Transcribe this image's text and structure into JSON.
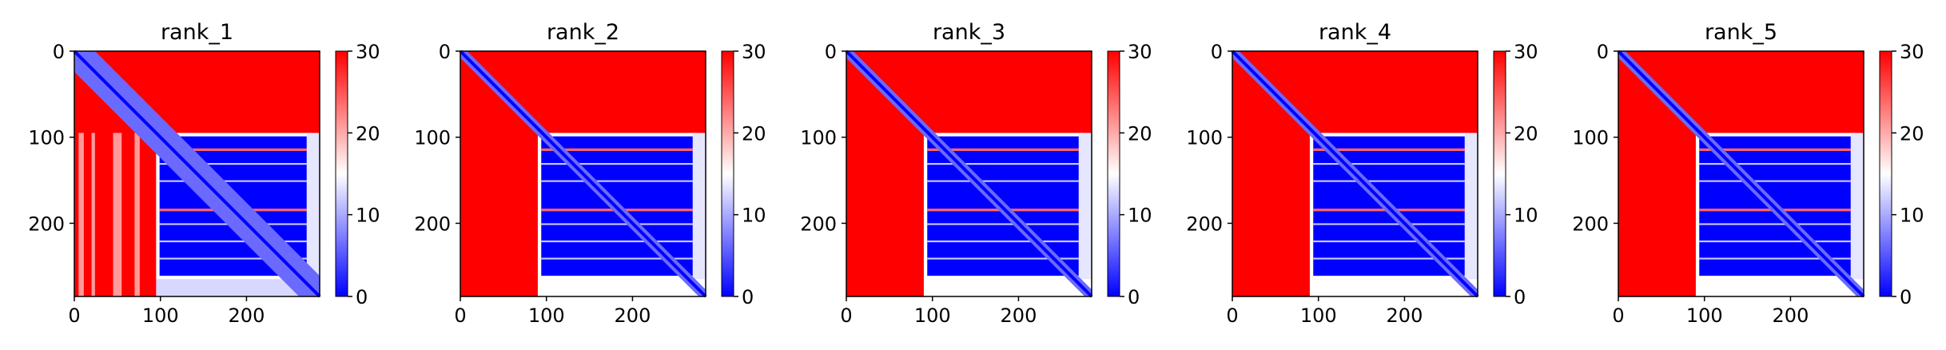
{
  "chart_data": [
    {
      "type": "heatmap",
      "title": "rank_1",
      "x_ticks": [
        0,
        100,
        200
      ],
      "y_ticks": [
        0,
        100,
        200
      ],
      "xlim": [
        0,
        285
      ],
      "ylim": [
        285,
        0
      ],
      "colorbar": {
        "ticks": [
          0,
          10,
          20,
          30
        ],
        "range": [
          0,
          30
        ],
        "colormap": "bwr"
      }
    },
    {
      "type": "heatmap",
      "title": "rank_2",
      "x_ticks": [
        0,
        100,
        200
      ],
      "y_ticks": [
        0,
        100,
        200
      ],
      "xlim": [
        0,
        285
      ],
      "ylim": [
        285,
        0
      ],
      "colorbar": {
        "ticks": [
          0,
          10,
          20,
          30
        ],
        "range": [
          0,
          30
        ],
        "colormap": "bwr"
      }
    },
    {
      "type": "heatmap",
      "title": "rank_3",
      "x_ticks": [
        0,
        100,
        200
      ],
      "y_ticks": [
        0,
        100,
        200
      ],
      "xlim": [
        0,
        285
      ],
      "ylim": [
        285,
        0
      ],
      "colorbar": {
        "ticks": [
          0,
          10,
          20,
          30
        ],
        "range": [
          0,
          30
        ],
        "colormap": "bwr"
      }
    },
    {
      "type": "heatmap",
      "title": "rank_4",
      "x_ticks": [
        0,
        100,
        200
      ],
      "y_ticks": [
        0,
        100,
        200
      ],
      "xlim": [
        0,
        285
      ],
      "ylim": [
        285,
        0
      ],
      "colorbar": {
        "ticks": [
          0,
          10,
          20,
          30
        ],
        "range": [
          0,
          30
        ],
        "colormap": "bwr"
      }
    },
    {
      "type": "heatmap",
      "title": "rank_5",
      "x_ticks": [
        0,
        100,
        200
      ],
      "y_ticks": [
        0,
        100,
        200
      ],
      "xlim": [
        0,
        285
      ],
      "ylim": [
        285,
        0
      ],
      "colorbar": {
        "ticks": [
          0,
          10,
          20,
          30
        ],
        "range": [
          0,
          30
        ],
        "colormap": "bwr"
      }
    }
  ],
  "colors": {
    "high": "#ff0000",
    "mid": "#ffffff",
    "low": "#0000ff"
  }
}
